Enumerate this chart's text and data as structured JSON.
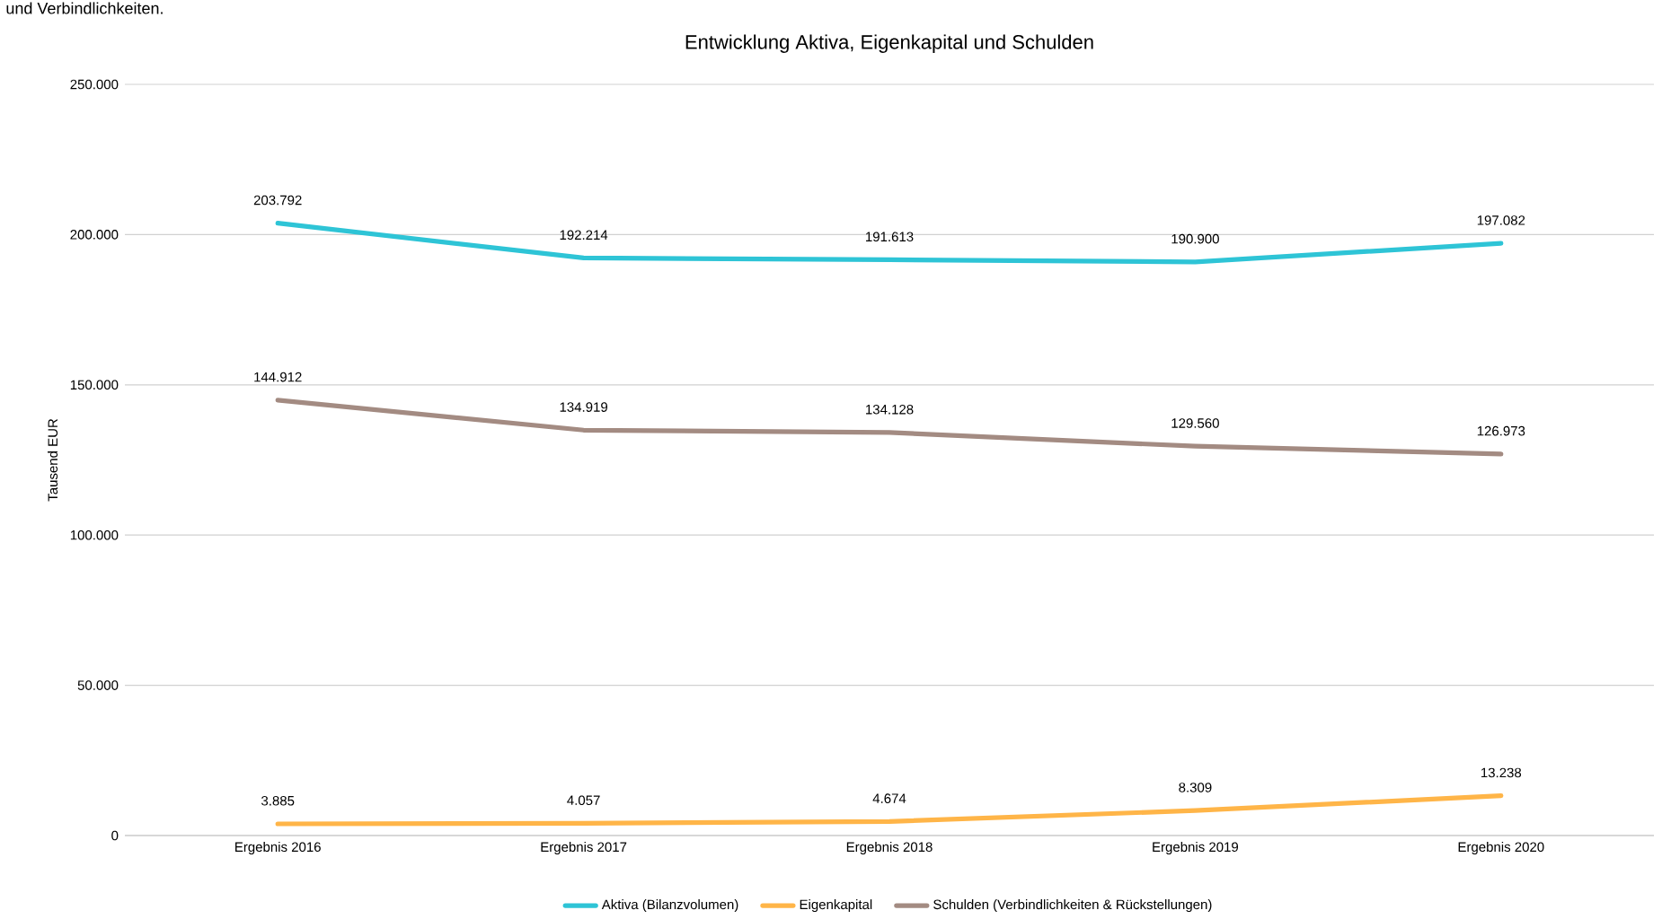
{
  "chart_data": {
    "type": "line",
    "title": "Entwicklung Aktiva, Eigenkapital und Schulden",
    "ylabel": "Tausend EUR",
    "annotations": [
      "und Verbindlichkeiten."
    ],
    "categories": [
      "Ergebnis 2016",
      "Ergebnis 2017",
      "Ergebnis 2018",
      "Ergebnis 2019",
      "Ergebnis 2020"
    ],
    "series": [
      {
        "name": "Aktiva (Bilanzvolumen)",
        "color": "#2ec4d6",
        "values": [
          203792,
          192214,
          191613,
          190900,
          197082
        ],
        "value_labels": [
          "203.792",
          "192.214",
          "191.613",
          "190.900",
          "197.082"
        ]
      },
      {
        "name": "Eigenkapital",
        "color": "#ffb548",
        "values": [
          3885,
          4057,
          4674,
          8309,
          13238
        ],
        "value_labels": [
          "3.885",
          "4.057",
          "4.674",
          "8.309",
          "13.238"
        ]
      },
      {
        "name": "Schulden (Verbindlichkeiten & Rückstellungen)",
        "color": "#a38b82",
        "values": [
          144912,
          134919,
          134128,
          129560,
          126973
        ],
        "value_labels": [
          "144.912",
          "134.919",
          "134.128",
          "129.560",
          "126.973"
        ]
      }
    ],
    "ylim": [
      0,
      250000
    ],
    "yticks": [
      0,
      {
        "value": 50000,
        "label": "50.000"
      },
      {
        "value": 100000,
        "label": "100.000"
      },
      {
        "value": 150000,
        "label": "150.000"
      },
      {
        "value": 200000,
        "label": "200.000"
      },
      {
        "value": 250000,
        "label": "250.000"
      }
    ],
    "grid": "y",
    "legend": "bottom",
    "marker": "none",
    "line_style": "solid"
  }
}
